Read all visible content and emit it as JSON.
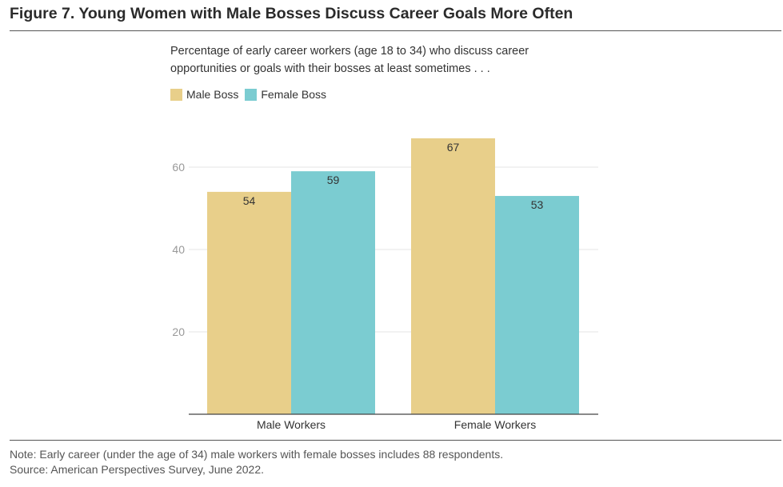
{
  "figure": {
    "title": "Figure 7. Young Women with Male Bosses Discuss Career Goals More Often",
    "subtitle": "Percentage of early career workers (age 18 to 34) who discuss career opportunities or goals with their bosses at least sometimes . . .",
    "note": "Note: Early career (under the age of  34) male workers with female bosses includes 88 respondents.",
    "source": "Source: American Perspectives Survey, June 2022."
  },
  "legend": {
    "items": [
      {
        "label": "Male Boss",
        "color": "#e8cf8a"
      },
      {
        "label": "Female Boss",
        "color": "#7bccd1"
      }
    ]
  },
  "chart_data": {
    "type": "bar",
    "categories": [
      "Male Workers",
      "Female Workers"
    ],
    "series": [
      {
        "name": "Male Boss",
        "values": [
          54,
          67
        ],
        "color": "#e8cf8a"
      },
      {
        "name": "Female Boss",
        "values": [
          59,
          53
        ],
        "color": "#7bccd1"
      }
    ],
    "ylim": [
      0,
      70
    ],
    "yticks": [
      20,
      40,
      60
    ],
    "grid": true,
    "data_labels": true,
    "legend_position": "top-left"
  }
}
